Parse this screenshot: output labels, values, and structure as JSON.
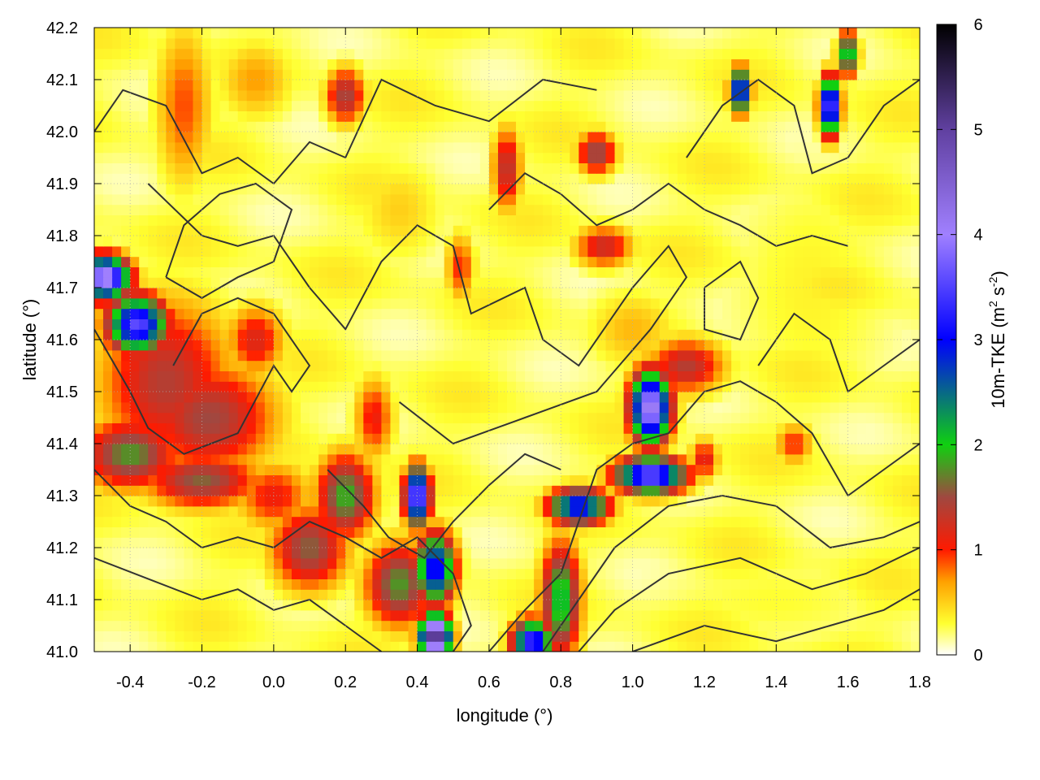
{
  "chart_data": {
    "type": "heatmap",
    "title": "",
    "xlabel": "longitude (°)",
    "ylabel": "latitude (°)",
    "xlim": [
      -0.5,
      1.8
    ],
    "ylim": [
      41.0,
      42.2
    ],
    "x_ticks": [
      -0.4,
      -0.2,
      0.0,
      0.2,
      0.4,
      0.6,
      0.8,
      1.0,
      1.2,
      1.4,
      1.6,
      1.8
    ],
    "x_tick_labels": [
      "-0.4",
      "-0.2",
      "0.0",
      "0.2",
      "0.4",
      "0.6",
      "0.8",
      "1.0",
      "1.2",
      "1.4",
      "1.6",
      "1.8"
    ],
    "y_ticks": [
      41.0,
      41.1,
      41.2,
      41.3,
      41.4,
      41.5,
      41.6,
      41.7,
      41.8,
      41.9,
      42.0,
      42.1,
      42.2
    ],
    "y_tick_labels": [
      "41.0",
      "41.1",
      "41.2",
      "41.3",
      "41.4",
      "41.5",
      "41.6",
      "41.7",
      "41.8",
      "41.9",
      "42.0",
      "42.1",
      "42.2"
    ],
    "grid": true,
    "colorbar": {
      "label": "10m-TKE (m² s⁻²)",
      "label_main": "10m-TKE (m",
      "label_sup1": "2",
      "label_mid": " s",
      "label_sup2": "-2",
      "label_end": ")",
      "range": [
        0,
        6
      ],
      "ticks": [
        0,
        1,
        2,
        3,
        4,
        5,
        6
      ],
      "tick_labels": [
        "0",
        "1",
        "2",
        "3",
        "4",
        "5",
        "6"
      ],
      "stops": [
        {
          "value": 0.0,
          "color": "#ffffff"
        },
        {
          "value": 0.3,
          "color": "#ffff30"
        },
        {
          "value": 0.7,
          "color": "#ffa000"
        },
        {
          "value": 1.0,
          "color": "#ff1a00"
        },
        {
          "value": 1.5,
          "color": "#a04840"
        },
        {
          "value": 2.0,
          "color": "#10d010"
        },
        {
          "value": 3.0,
          "color": "#0000ff"
        },
        {
          "value": 4.0,
          "color": "#a080ff"
        },
        {
          "value": 5.0,
          "color": "#6040a0"
        },
        {
          "value": 6.0,
          "color": "#000000"
        }
      ]
    },
    "hotspots": [
      {
        "lon": -0.47,
        "lat": 41.72,
        "sx": 0.05,
        "sy": 0.03,
        "v": 4.3
      },
      {
        "lon": -0.38,
        "lat": 41.63,
        "sx": 0.06,
        "sy": 0.04,
        "v": 3.6
      },
      {
        "lon": -0.3,
        "lat": 41.52,
        "sx": 0.14,
        "sy": 0.12,
        "v": 1.4
      },
      {
        "lon": -0.18,
        "lat": 41.45,
        "sx": 0.14,
        "sy": 0.08,
        "v": 1.5
      },
      {
        "lon": -0.05,
        "lat": 41.6,
        "sx": 0.06,
        "sy": 0.05,
        "v": 1.2
      },
      {
        "lon": -0.4,
        "lat": 41.38,
        "sx": 0.1,
        "sy": 0.05,
        "v": 1.8
      },
      {
        "lon": -0.2,
        "lat": 41.33,
        "sx": 0.12,
        "sy": 0.04,
        "v": 1.6
      },
      {
        "lon": 0.0,
        "lat": 41.3,
        "sx": 0.08,
        "sy": 0.05,
        "v": 1.1
      },
      {
        "lon": 0.2,
        "lat": 41.3,
        "sx": 0.06,
        "sy": 0.06,
        "v": 1.9
      },
      {
        "lon": 0.28,
        "lat": 41.45,
        "sx": 0.04,
        "sy": 0.06,
        "v": 1.1
      },
      {
        "lon": 0.1,
        "lat": 41.2,
        "sx": 0.08,
        "sy": 0.06,
        "v": 1.6
      },
      {
        "lon": 0.35,
        "lat": 41.13,
        "sx": 0.07,
        "sy": 0.06,
        "v": 1.8
      },
      {
        "lon": 0.45,
        "lat": 41.16,
        "sx": 0.04,
        "sy": 0.05,
        "v": 3.2
      },
      {
        "lon": 0.45,
        "lat": 41.03,
        "sx": 0.03,
        "sy": 0.03,
        "v": 5.5
      },
      {
        "lon": 0.4,
        "lat": 41.3,
        "sx": 0.025,
        "sy": 0.04,
        "v": 4.0
      },
      {
        "lon": 0.8,
        "lat": 41.1,
        "sx": 0.04,
        "sy": 0.08,
        "v": 2.2
      },
      {
        "lon": 0.72,
        "lat": 41.02,
        "sx": 0.04,
        "sy": 0.03,
        "v": 3.5
      },
      {
        "lon": 0.85,
        "lat": 41.28,
        "sx": 0.06,
        "sy": 0.025,
        "v": 3.2
      },
      {
        "lon": 1.05,
        "lat": 41.34,
        "sx": 0.07,
        "sy": 0.025,
        "v": 3.8
      },
      {
        "lon": 1.05,
        "lat": 41.47,
        "sx": 0.04,
        "sy": 0.05,
        "v": 4.3
      },
      {
        "lon": 1.15,
        "lat": 41.55,
        "sx": 0.08,
        "sy": 0.04,
        "v": 1.4
      },
      {
        "lon": 0.92,
        "lat": 41.78,
        "sx": 0.06,
        "sy": 0.03,
        "v": 1.3
      },
      {
        "lon": 0.52,
        "lat": 41.74,
        "sx": 0.03,
        "sy": 0.05,
        "v": 1.0
      },
      {
        "lon": 0.65,
        "lat": 41.93,
        "sx": 0.03,
        "sy": 0.06,
        "v": 1.4
      },
      {
        "lon": 0.9,
        "lat": 41.96,
        "sx": 0.04,
        "sy": 0.03,
        "v": 1.6
      },
      {
        "lon": 0.2,
        "lat": 42.07,
        "sx": 0.04,
        "sy": 0.04,
        "v": 1.5
      },
      {
        "lon": 1.3,
        "lat": 42.08,
        "sx": 0.02,
        "sy": 0.03,
        "v": 3.5
      },
      {
        "lon": 1.55,
        "lat": 42.05,
        "sx": 0.02,
        "sy": 0.04,
        "v": 4.0
      },
      {
        "lon": 1.6,
        "lat": 42.15,
        "sx": 0.02,
        "sy": 0.03,
        "v": 2.5
      },
      {
        "lon": -0.25,
        "lat": 42.05,
        "sx": 0.06,
        "sy": 0.12,
        "v": 0.9
      },
      {
        "lon": -0.05,
        "lat": 42.1,
        "sx": 0.08,
        "sy": 0.06,
        "v": 0.7
      },
      {
        "lon": 0.35,
        "lat": 41.85,
        "sx": 0.1,
        "sy": 0.08,
        "v": 0.5
      },
      {
        "lon": 1.5,
        "lat": 41.7,
        "sx": 0.2,
        "sy": 0.2,
        "v": 0.35
      },
      {
        "lon": 1.0,
        "lat": 41.62,
        "sx": 0.1,
        "sy": 0.06,
        "v": 0.6
      },
      {
        "lon": 1.4,
        "lat": 41.1,
        "sx": 0.3,
        "sy": 0.08,
        "v": 0.3
      },
      {
        "lon": 1.45,
        "lat": 41.4,
        "sx": 0.04,
        "sy": 0.03,
        "v": 1.0
      },
      {
        "lon": 1.2,
        "lat": 41.37,
        "sx": 0.03,
        "sy": 0.03,
        "v": 1.2
      }
    ],
    "contours": [
      [
        [
          -0.5,
          42.0
        ],
        [
          -0.42,
          42.08
        ],
        [
          -0.3,
          42.05
        ],
        [
          -0.2,
          41.92
        ],
        [
          -0.1,
          41.95
        ],
        [
          0.0,
          41.9
        ],
        [
          0.1,
          41.98
        ],
        [
          0.2,
          41.95
        ],
        [
          0.3,
          42.1
        ],
        [
          0.45,
          42.05
        ],
        [
          0.6,
          42.02
        ],
        [
          0.75,
          42.1
        ],
        [
          0.9,
          42.08
        ]
      ],
      [
        [
          -0.35,
          41.9
        ],
        [
          -0.2,
          41.8
        ],
        [
          -0.1,
          41.78
        ],
        [
          0.0,
          41.8
        ],
        [
          0.1,
          41.7
        ],
        [
          0.2,
          41.62
        ],
        [
          0.3,
          41.75
        ],
        [
          0.4,
          41.82
        ],
        [
          0.5,
          41.78
        ],
        [
          0.55,
          41.65
        ],
        [
          0.7,
          41.7
        ],
        [
          0.75,
          41.6
        ],
        [
          0.85,
          41.55
        ],
        [
          1.0,
          41.7
        ],
        [
          1.1,
          41.78
        ],
        [
          1.15,
          41.72
        ],
        [
          1.05,
          41.62
        ],
        [
          0.9,
          41.5
        ],
        [
          0.7,
          41.45
        ],
        [
          0.5,
          41.4
        ],
        [
          0.35,
          41.48
        ]
      ],
      [
        [
          -0.5,
          41.62
        ],
        [
          -0.4,
          41.5
        ],
        [
          -0.35,
          41.43
        ],
        [
          -0.25,
          41.38
        ],
        [
          -0.1,
          41.42
        ],
        [
          0.0,
          41.55
        ],
        [
          0.05,
          41.5
        ],
        [
          0.1,
          41.55
        ],
        [
          0.0,
          41.65
        ],
        [
          -0.1,
          41.68
        ],
        [
          -0.2,
          41.65
        ],
        [
          -0.28,
          41.55
        ]
      ],
      [
        [
          -0.5,
          41.35
        ],
        [
          -0.4,
          41.28
        ],
        [
          -0.3,
          41.25
        ],
        [
          -0.2,
          41.2
        ],
        [
          -0.1,
          41.22
        ],
        [
          0.0,
          41.2
        ],
        [
          0.1,
          41.25
        ],
        [
          0.2,
          41.22
        ],
        [
          0.3,
          41.18
        ],
        [
          0.4,
          41.22
        ],
        [
          0.5,
          41.15
        ],
        [
          0.55,
          41.05
        ],
        [
          0.5,
          41.0
        ]
      ],
      [
        [
          -0.5,
          41.18
        ],
        [
          -0.35,
          41.14
        ],
        [
          -0.2,
          41.1
        ],
        [
          -0.1,
          41.12
        ],
        [
          0.0,
          41.08
        ],
        [
          0.1,
          41.1
        ],
        [
          0.2,
          41.05
        ],
        [
          0.3,
          41.0
        ]
      ],
      [
        [
          0.6,
          41.0
        ],
        [
          0.7,
          41.08
        ],
        [
          0.8,
          41.15
        ],
        [
          0.85,
          41.25
        ],
        [
          0.9,
          41.35
        ],
        [
          1.0,
          41.4
        ],
        [
          1.1,
          41.42
        ],
        [
          1.2,
          41.5
        ],
        [
          1.3,
          41.52
        ],
        [
          1.4,
          41.48
        ],
        [
          1.5,
          41.42
        ],
        [
          1.6,
          41.3
        ],
        [
          1.7,
          41.35
        ],
        [
          1.8,
          41.4
        ]
      ],
      [
        [
          0.75,
          41.0
        ],
        [
          0.85,
          41.1
        ],
        [
          0.95,
          41.2
        ],
        [
          1.1,
          41.28
        ],
        [
          1.25,
          41.3
        ],
        [
          1.4,
          41.28
        ],
        [
          1.55,
          41.2
        ],
        [
          1.7,
          41.22
        ],
        [
          1.8,
          41.25
        ]
      ],
      [
        [
          0.85,
          41.0
        ],
        [
          0.95,
          41.08
        ],
        [
          1.1,
          41.15
        ],
        [
          1.3,
          41.18
        ],
        [
          1.5,
          41.12
        ],
        [
          1.65,
          41.15
        ],
        [
          1.8,
          41.2
        ]
      ],
      [
        [
          1.0,
          41.0
        ],
        [
          1.2,
          41.05
        ],
        [
          1.4,
          41.02
        ],
        [
          1.55,
          41.05
        ],
        [
          1.7,
          41.08
        ],
        [
          1.8,
          41.12
        ]
      ],
      [
        [
          1.15,
          41.95
        ],
        [
          1.25,
          42.05
        ],
        [
          1.35,
          42.1
        ],
        [
          1.45,
          42.05
        ],
        [
          1.5,
          41.92
        ],
        [
          1.6,
          41.95
        ],
        [
          1.7,
          42.05
        ],
        [
          1.8,
          42.1
        ]
      ],
      [
        [
          1.35,
          41.55
        ],
        [
          1.45,
          41.65
        ],
        [
          1.55,
          41.6
        ],
        [
          1.6,
          41.5
        ],
        [
          1.7,
          41.55
        ],
        [
          1.8,
          41.6
        ]
      ],
      [
        [
          0.6,
          41.85
        ],
        [
          0.7,
          41.92
        ],
        [
          0.8,
          41.88
        ],
        [
          0.9,
          41.82
        ],
        [
          1.0,
          41.85
        ],
        [
          1.1,
          41.9
        ],
        [
          1.2,
          41.85
        ],
        [
          1.3,
          41.82
        ],
        [
          1.4,
          41.78
        ],
        [
          1.5,
          41.8
        ],
        [
          1.6,
          41.78
        ]
      ],
      [
        [
          0.15,
          41.35
        ],
        [
          0.25,
          41.28
        ],
        [
          0.32,
          41.22
        ],
        [
          0.42,
          41.18
        ],
        [
          0.5,
          41.25
        ],
        [
          0.6,
          41.32
        ],
        [
          0.7,
          41.38
        ],
        [
          0.8,
          41.35
        ]
      ],
      [
        [
          -0.3,
          41.72
        ],
        [
          -0.2,
          41.68
        ],
        [
          -0.1,
          41.72
        ],
        [
          0.0,
          41.75
        ],
        [
          0.05,
          41.85
        ],
        [
          -0.05,
          41.9
        ],
        [
          -0.15,
          41.88
        ],
        [
          -0.25,
          41.82
        ],
        [
          -0.3,
          41.72
        ]
      ],
      [
        [
          1.2,
          41.7
        ],
        [
          1.3,
          41.75
        ],
        [
          1.35,
          41.68
        ],
        [
          1.3,
          41.6
        ],
        [
          1.2,
          41.62
        ],
        [
          1.2,
          41.7
        ]
      ]
    ]
  }
}
